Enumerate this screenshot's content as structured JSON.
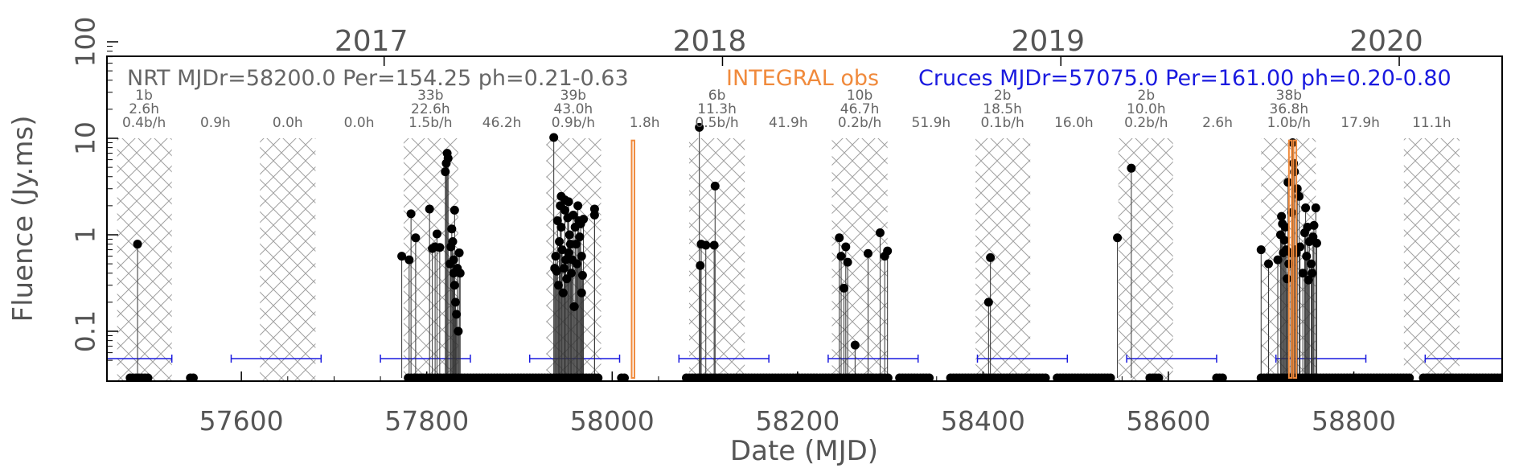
{
  "chart_data": {
    "type": "scatter",
    "title": "",
    "xlabel": "Date (MJD)",
    "ylabel": "Fluence (Jy.ms)",
    "xlim": [
      57455,
      58960
    ],
    "ylim_log": [
      0.05,
      100
    ],
    "x_ticks": [
      57600,
      57800,
      58000,
      58200,
      58400,
      58600,
      58800
    ],
    "y_ticks": [
      {
        "value": 0.1,
        "label": "0.1"
      },
      {
        "value": 1,
        "label": "1"
      },
      {
        "value": 10,
        "label": "10"
      },
      {
        "value": 100,
        "label": "100"
      }
    ],
    "years": [
      {
        "label": "2017",
        "mjd": 57754
      },
      {
        "label": "2018",
        "mjd": 58119
      },
      {
        "label": "2019",
        "mjd": 58484
      },
      {
        "label": "2020",
        "mjd": 58849
      }
    ],
    "legend": {
      "nrt": "NRT MJDr=58200.0 Per=154.25 ph=0.21-0.63",
      "integral": "INTEGRAL obs",
      "cruces": "Cruces MJDr=57075.0 Per=161.00 ph=0.20-0.80"
    },
    "colors": {
      "nrt": "#666666",
      "integral": "#f08a3c",
      "cruces": "#1a1adf",
      "hatch": "#9a9a9a",
      "points": "#000000"
    },
    "nrt_windows": [
      [
        57466,
        57525
      ],
      [
        57620,
        57680
      ],
      [
        57775,
        57834
      ],
      [
        57929,
        57988
      ],
      [
        58083,
        58143
      ],
      [
        58237,
        58297
      ],
      [
        58392,
        58451
      ],
      [
        58546,
        58605
      ],
      [
        58700,
        58759
      ],
      [
        58854,
        58914
      ]
    ],
    "cruces_windows": [
      [
        57455,
        57525
      ],
      [
        57589,
        57686
      ],
      [
        57750,
        57847
      ],
      [
        57911,
        58008
      ],
      [
        58072,
        58169
      ],
      [
        58233,
        58330
      ],
      [
        58394,
        58491
      ],
      [
        58555,
        58652
      ],
      [
        58716,
        58813
      ],
      [
        58877,
        58960
      ]
    ],
    "integral_obs": [
      [
        58021,
        58024
      ],
      [
        58730,
        58733
      ],
      [
        58735,
        58738
      ]
    ],
    "window_labels": [
      {
        "mjd": 57495,
        "lines": [
          "1b",
          "2.6h",
          "0.4b/h"
        ]
      },
      {
        "mjd": 57572,
        "lines": [
          "0.9h"
        ]
      },
      {
        "mjd": 57650,
        "lines": [
          "0.0h"
        ]
      },
      {
        "mjd": 57727,
        "lines": [
          "0.0h"
        ]
      },
      {
        "mjd": 57804,
        "lines": [
          "33b",
          "22.6h",
          "1.5b/h"
        ]
      },
      {
        "mjd": 57881,
        "lines": [
          "46.2h"
        ]
      },
      {
        "mjd": 57958,
        "lines": [
          "39b",
          "43.0h",
          "0.9b/h"
        ]
      },
      {
        "mjd": 58035,
        "lines": [
          "1.8h"
        ]
      },
      {
        "mjd": 58113,
        "lines": [
          "6b",
          "11.3h",
          "0.5b/h"
        ]
      },
      {
        "mjd": 58190,
        "lines": [
          "41.9h"
        ]
      },
      {
        "mjd": 58267,
        "lines": [
          "10b",
          "46.7h",
          "0.2b/h"
        ]
      },
      {
        "mjd": 58344,
        "lines": [
          "51.9h"
        ]
      },
      {
        "mjd": 58421,
        "lines": [
          "2b",
          "18.5h",
          "0.1b/h"
        ]
      },
      {
        "mjd": 58498,
        "lines": [
          "16.0h"
        ]
      },
      {
        "mjd": 58576,
        "lines": [
          "2b",
          "10.0h",
          "0.2b/h"
        ]
      },
      {
        "mjd": 58653,
        "lines": [
          "2.6h"
        ]
      },
      {
        "mjd": 58730,
        "lines": [
          "38b",
          "36.8h",
          "1.0b/h"
        ]
      },
      {
        "mjd": 58807,
        "lines": [
          "17.9h"
        ]
      },
      {
        "mjd": 58884,
        "lines": [
          "11.1h"
        ]
      }
    ],
    "bursts": [
      [
        57488,
        0.8
      ],
      [
        57773,
        0.6
      ],
      [
        57781,
        0.55
      ],
      [
        57783,
        1.65
      ],
      [
        57788,
        0.93
      ],
      [
        57803,
        1.85
      ],
      [
        57806,
        0.72
      ],
      [
        57809,
        0.75
      ],
      [
        57811,
        1.02
      ],
      [
        57814,
        0.74
      ],
      [
        57820,
        4.5
      ],
      [
        57821,
        5.5
      ],
      [
        57822,
        7.0
      ],
      [
        57823,
        6.2
      ],
      [
        57825,
        0.5
      ],
      [
        57826,
        0.75
      ],
      [
        57827,
        1.15
      ],
      [
        57828,
        0.85
      ],
      [
        57829,
        0.4
      ],
      [
        57829,
        0.55
      ],
      [
        57830,
        1.8
      ],
      [
        57830,
        0.3
      ],
      [
        57831,
        0.2
      ],
      [
        57832,
        0.15
      ],
      [
        57833,
        0.45
      ],
      [
        57834,
        0.1
      ],
      [
        57835,
        0.65
      ],
      [
        57836,
        0.4
      ],
      [
        57937,
        10.2
      ],
      [
        57938,
        0.45
      ],
      [
        57939,
        0.6
      ],
      [
        57940,
        0.42
      ],
      [
        57941,
        1.4
      ],
      [
        57942,
        0.3
      ],
      [
        57943,
        0.85
      ],
      [
        57944,
        2.0
      ],
      [
        57945,
        1.2
      ],
      [
        57945,
        2.5
      ],
      [
        57946,
        0.7
      ],
      [
        57947,
        0.25
      ],
      [
        57948,
        0.45
      ],
      [
        57949,
        1.8
      ],
      [
        57949,
        2.3
      ],
      [
        57950,
        0.55
      ],
      [
        57951,
        0.35
      ],
      [
        57952,
        1.5
      ],
      [
        57953,
        2.2
      ],
      [
        57953,
        0.65
      ],
      [
        57954,
        1.0
      ],
      [
        57955,
        0.8
      ],
      [
        57956,
        0.4
      ],
      [
        57957,
        0.55
      ],
      [
        57958,
        1.6
      ],
      [
        57959,
        0.18
      ],
      [
        57960,
        1.2
      ],
      [
        57961,
        0.8
      ],
      [
        57962,
        0.5
      ],
      [
        57963,
        2.0
      ],
      [
        57964,
        1.4
      ],
      [
        57965,
        0.95
      ],
      [
        57966,
        1.3
      ],
      [
        57967,
        0.6
      ],
      [
        57967,
        0.25
      ],
      [
        57968,
        0.38
      ],
      [
        57969,
        1.45
      ],
      [
        57981,
        1.6
      ],
      [
        57981,
        1.85
      ],
      [
        58094,
        13.0
      ],
      [
        58095,
        0.48
      ],
      [
        58096,
        0.8
      ],
      [
        58101,
        0.78
      ],
      [
        58110,
        0.78
      ],
      [
        58111,
        3.2
      ],
      [
        58245,
        0.93
      ],
      [
        58247,
        0.6
      ],
      [
        58250,
        0.28
      ],
      [
        58252,
        0.75
      ],
      [
        58254,
        0.52
      ],
      [
        58262,
        0.072
      ],
      [
        58276,
        0.64
      ],
      [
        58289,
        1.05
      ],
      [
        58294,
        0.6
      ],
      [
        58297,
        0.68
      ],
      [
        58406,
        0.2
      ],
      [
        58408,
        0.58
      ],
      [
        58545,
        0.93
      ],
      [
        58560,
        4.9
      ],
      [
        58700,
        0.7
      ],
      [
        58708,
        0.5
      ],
      [
        58718,
        0.55
      ],
      [
        58721,
        1.0
      ],
      [
        58722,
        1.55
      ],
      [
        58723,
        1.3
      ],
      [
        58724,
        0.65
      ],
      [
        58725,
        0.88
      ],
      [
        58726,
        1.2
      ],
      [
        58727,
        0.7
      ],
      [
        58728,
        0.35
      ],
      [
        58729,
        3.5
      ],
      [
        58730,
        0.5
      ],
      [
        58732,
        0.65
      ],
      [
        58733,
        1.7
      ],
      [
        58734,
        9.0
      ],
      [
        58735,
        5.5
      ],
      [
        58736,
        4.5
      ],
      [
        58737,
        0.7
      ],
      [
        58738,
        0.65
      ],
      [
        58739,
        3.0
      ],
      [
        58741,
        2.5
      ],
      [
        58742,
        0.75
      ],
      [
        58745,
        0.4
      ],
      [
        58747,
        1.05
      ],
      [
        58748,
        1.9
      ],
      [
        58749,
        0.6
      ],
      [
        58750,
        1.2
      ],
      [
        58751,
        0.34
      ],
      [
        58752,
        0.85
      ],
      [
        58754,
        0.5
      ],
      [
        58755,
        0.4
      ],
      [
        58756,
        0.95
      ],
      [
        58757,
        1.25
      ],
      [
        58759,
        1.9
      ],
      [
        58760,
        0.82
      ]
    ],
    "upper_limit_days": [
      [
        57480,
        57500
      ],
      [
        57545,
        57550
      ],
      [
        57780,
        57985
      ],
      [
        58010,
        58015
      ],
      [
        58080,
        58300
      ],
      [
        58310,
        58345
      ],
      [
        58365,
        58470
      ],
      [
        58480,
        58540
      ],
      [
        58580,
        58590
      ],
      [
        58652,
        58660
      ],
      [
        58700,
        58860
      ],
      [
        58875,
        58960
      ]
    ]
  }
}
